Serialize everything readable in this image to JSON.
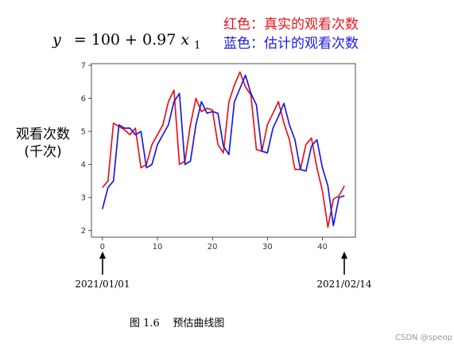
{
  "equation": {
    "lhs": "y",
    "rhs": "= 100 + 0.97",
    "var": "x",
    "sub": "1"
  },
  "legend": {
    "actual": {
      "label": "红色：真实的观看次数",
      "color": "#e8141b"
    },
    "predicted": {
      "label": "蓝色：估计的观看次数",
      "color": "#1a19e6"
    }
  },
  "ylabel": {
    "line1": "观看次数",
    "line2": "(千次)"
  },
  "annotations": {
    "start": "2021/01/01",
    "end": "2021/02/14"
  },
  "caption": "图 1.6    预估曲线图",
  "watermark": "CSDN @speop",
  "chart_data": {
    "type": "line",
    "xlim": [
      -2,
      46
    ],
    "ylim": [
      1.8,
      7.05
    ],
    "xticks": [
      0,
      10,
      20,
      30,
      40
    ],
    "yticks": [
      2,
      3,
      4,
      5,
      6,
      7
    ],
    "grid": false,
    "series": [
      {
        "name": "真实的观看次数",
        "color": "#e8141b",
        "x": [
          0,
          1,
          2,
          3,
          4,
          5,
          6,
          7,
          8,
          9,
          10,
          11,
          12,
          13,
          14,
          15,
          16,
          17,
          18,
          19,
          20,
          21,
          22,
          23,
          24,
          25,
          26,
          27,
          28,
          29,
          30,
          31,
          32,
          33,
          34,
          35,
          36,
          37,
          38,
          39,
          40,
          41,
          42,
          43,
          44
        ],
        "values": [
          3.3,
          3.5,
          5.25,
          5.15,
          5.05,
          4.9,
          5.1,
          3.9,
          4.0,
          4.6,
          4.9,
          5.2,
          5.9,
          6.25,
          4.0,
          4.1,
          5.2,
          6.0,
          5.6,
          5.7,
          5.65,
          4.6,
          4.35,
          5.9,
          6.4,
          6.8,
          6.35,
          6.1,
          4.45,
          4.4,
          5.2,
          5.55,
          5.9,
          5.25,
          4.75,
          3.85,
          3.85,
          4.6,
          4.8,
          3.9,
          3.2,
          2.1,
          2.95,
          3.05,
          3.35
        ]
      },
      {
        "name": "估计的观看次数",
        "color": "#1a19e6",
        "x": [
          0,
          1,
          2,
          3,
          4,
          5,
          6,
          7,
          8,
          9,
          10,
          11,
          12,
          13,
          14,
          15,
          16,
          17,
          18,
          19,
          20,
          21,
          22,
          23,
          24,
          25,
          26,
          27,
          28,
          29,
          30,
          31,
          32,
          33,
          34,
          35,
          36,
          37,
          38,
          39,
          40,
          41,
          42,
          43,
          44
        ],
        "values": [
          2.65,
          3.3,
          3.5,
          5.2,
          5.1,
          5.1,
          4.9,
          5.0,
          3.9,
          4.0,
          4.6,
          4.9,
          5.2,
          5.9,
          6.15,
          4.0,
          4.1,
          5.2,
          5.9,
          5.55,
          5.6,
          5.55,
          4.55,
          4.3,
          5.9,
          6.3,
          6.7,
          6.15,
          5.8,
          4.4,
          4.35,
          5.1,
          5.45,
          5.85,
          5.2,
          4.75,
          3.85,
          3.8,
          4.55,
          4.75,
          3.9,
          3.35,
          2.15,
          3.0,
          3.05
        ]
      }
    ]
  }
}
